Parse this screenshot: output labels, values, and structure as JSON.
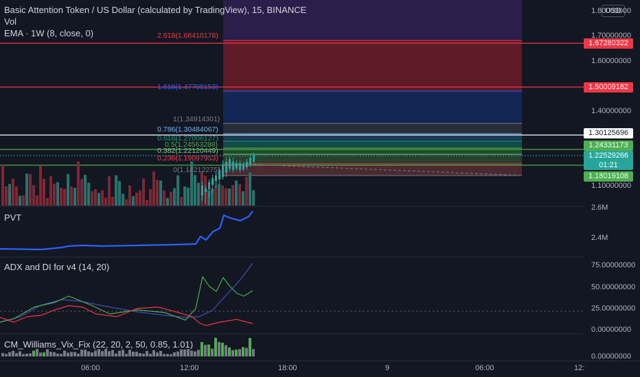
{
  "header": {
    "title": "Basic Attention Token / US Dollar (calculated by TradingView), 15, BINANCE",
    "vol": "Vol",
    "ema": "EMA · 1W (8, close, 0)"
  },
  "currency_button": "USD",
  "fib_levels": [
    {
      "label": "2.618(1.68410178)",
      "color": "#f23645"
    },
    {
      "label": "1.618(1.47708153)",
      "color": "#2962ff"
    },
    {
      "label": "1(1.34914301)",
      "color": "#787b86"
    },
    {
      "label": "0.786(1.30484067)",
      "color": "#64b5f6"
    },
    {
      "label": "0.618(1.27006127)",
      "color": "#089981"
    },
    {
      "label": "0.5(1.24563288)",
      "color": "#4caf50"
    },
    {
      "label": "0.382(1.22120449)",
      "color": "#81c784"
    },
    {
      "label": "0.236(1.19097953)",
      "color": "#f23645"
    },
    {
      "label": "0(1.14212275)",
      "color": "#787b86"
    }
  ],
  "price_axis": {
    "ticks": [
      "1.80000000",
      "1.70000000",
      "1.60000000",
      "1.40000000",
      "1.10000000"
    ],
    "markers": [
      {
        "value": "1.67280322",
        "bg": "#f23645",
        "fg": "#ffffff"
      },
      {
        "value": "1.50009182",
        "bg": "#f23645",
        "fg": "#ffffff"
      },
      {
        "value": "1.30125696",
        "bg": "#ffffff",
        "fg": "#131722"
      },
      {
        "value": "1.24331173",
        "bg": "#4caf50",
        "fg": "#ffffff"
      },
      {
        "value": "1.22529266",
        "bg": "#26a69a",
        "fg": "#ffffff"
      },
      {
        "value": "1.18019108",
        "bg": "#4caf50",
        "fg": "#ffffff"
      }
    ],
    "countdown": "01:21"
  },
  "pvt": {
    "title": "PVT",
    "ticks": [
      "2.6M",
      "2.4M"
    ]
  },
  "adx": {
    "title": "ADX and DI for v4 (14, 20)",
    "ticks": [
      "75.00000000",
      "50.00000000",
      "25.00000000",
      "0.00000000"
    ]
  },
  "vix": {
    "title": "CM_Williams_Vix_Fix (22, 20, 2, 50, 0.85, 1.01)",
    "ticks": [
      "0.00000000"
    ]
  },
  "time_axis": [
    "06:00",
    "12:00",
    "18:00",
    "9",
    "06:00",
    "12:"
  ],
  "colors": {
    "bull": "#26a69a",
    "bear": "#f23645",
    "volbull": "#22766d",
    "volbear": "#7f2734",
    "pvt": "#2962ff",
    "adx": "#3f51b5",
    "di_plus": "#4caf50",
    "di_minus": "#f23645"
  }
}
